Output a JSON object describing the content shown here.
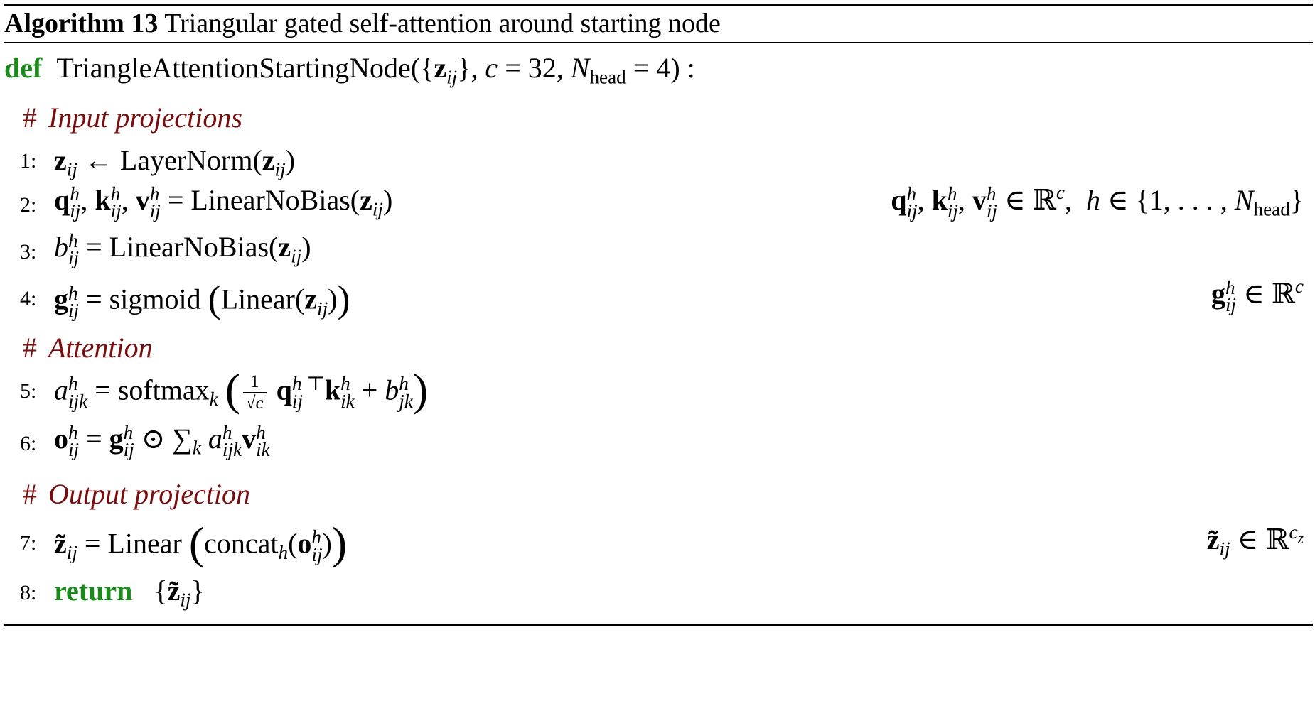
{
  "caption": {
    "label": "Algorithm 13",
    "title": "Triangular gated self-attention around starting node"
  },
  "signature": {
    "keyword": "def",
    "name": "TriangleAttentionStartingNode",
    "params": "({z_ij}, c = 32, N_head = 4) :"
  },
  "comments": {
    "input_projections": "Input projections",
    "attention": "Attention",
    "output_projection": "Output projection"
  },
  "lines": [
    {
      "number": "1:",
      "expr": "z_ij ← LayerNorm(z_ij)",
      "note": ""
    },
    {
      "number": "2:",
      "expr": "q^h_ij, k^h_ij, v^h_ij = LinearNoBias(z_ij)",
      "note": "q^h_ij, k^h_ij, v^h_ij ∈ ℝ^c,  h ∈ {1, . . . , N_head}"
    },
    {
      "number": "3:",
      "expr": "b^h_ij = LinearNoBias(z_ij)",
      "note": ""
    },
    {
      "number": "4:",
      "expr": "g^h_ij = sigmoid (Linear(z_ij))",
      "note": "g^h_ij ∈ ℝ^c"
    },
    {
      "number": "5:",
      "expr": "a^h_ijk = softmax_k ( 1/√c q^h_ij^⊤ k^h_ik + b^h_jk )",
      "note": ""
    },
    {
      "number": "6:",
      "expr": "o^h_ij = g^h_ij ⊙ Σ_k a^h_ijk v^h_ik",
      "note": ""
    },
    {
      "number": "7:",
      "expr": "z̃_ij = Linear ( concat_h(o^h_ij) )",
      "note": "z̃_ij ∈ ℝ^c_z"
    },
    {
      "number": "8:",
      "expr": "return {z̃_ij}",
      "note": ""
    }
  ],
  "keywords": {
    "return": "return"
  }
}
